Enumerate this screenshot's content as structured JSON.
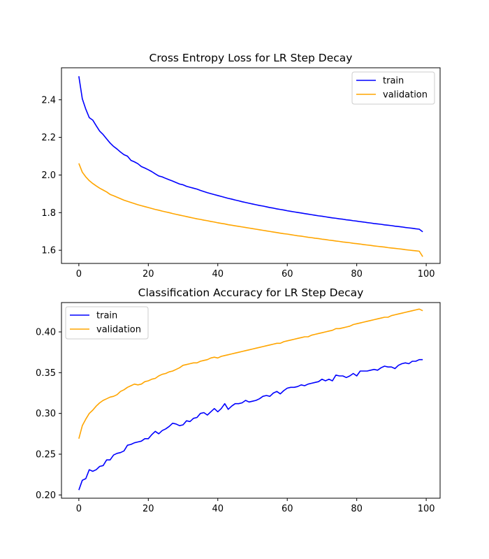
{
  "chart_data": [
    {
      "type": "line",
      "title": "Cross Entropy Loss for LR Step Decay",
      "xlabel": "",
      "ylabel": "",
      "xlim": [
        -5,
        104
      ],
      "ylim": [
        1.53,
        2.57
      ],
      "xticks": [
        0,
        20,
        40,
        60,
        80,
        100
      ],
      "xtick_labels": [
        "0",
        "20",
        "40",
        "60",
        "80",
        "100"
      ],
      "yticks": [
        1.6,
        1.8,
        2.0,
        2.2,
        2.4
      ],
      "ytick_labels": [
        "1.6",
        "1.8",
        "2.0",
        "2.2",
        "2.4"
      ],
      "grid": false,
      "legend_position": "top-right",
      "series": [
        {
          "name": "train",
          "color": "#0000ff",
          "x_start": 0,
          "values": [
            2.525,
            2.405,
            2.35,
            2.305,
            2.292,
            2.262,
            2.233,
            2.215,
            2.192,
            2.17,
            2.152,
            2.138,
            2.122,
            2.108,
            2.1,
            2.078,
            2.07,
            2.06,
            2.045,
            2.037,
            2.028,
            2.018,
            2.006,
            1.995,
            1.99,
            1.982,
            1.975,
            1.968,
            1.96,
            1.952,
            1.948,
            1.94,
            1.935,
            1.93,
            1.925,
            1.918,
            1.912,
            1.906,
            1.901,
            1.896,
            1.891,
            1.886,
            1.881,
            1.876,
            1.872,
            1.867,
            1.863,
            1.858,
            1.854,
            1.85,
            1.846,
            1.842,
            1.838,
            1.835,
            1.831,
            1.827,
            1.824,
            1.82,
            1.817,
            1.814,
            1.81,
            1.807,
            1.804,
            1.801,
            1.798,
            1.795,
            1.792,
            1.789,
            1.786,
            1.783,
            1.781,
            1.778,
            1.775,
            1.772,
            1.77,
            1.767,
            1.765,
            1.762,
            1.76,
            1.757,
            1.755,
            1.752,
            1.75,
            1.747,
            1.745,
            1.742,
            1.74,
            1.738,
            1.735,
            1.733,
            1.731,
            1.728,
            1.726,
            1.724,
            1.721,
            1.719,
            1.717,
            1.714,
            1.712,
            1.698
          ]
        },
        {
          "name": "validation",
          "color": "#ffa500",
          "x_start": 0,
          "values": [
            2.062,
            2.015,
            1.99,
            1.97,
            1.955,
            1.942,
            1.93,
            1.92,
            1.91,
            1.897,
            1.89,
            1.882,
            1.874,
            1.866,
            1.86,
            1.854,
            1.848,
            1.842,
            1.837,
            1.832,
            1.827,
            1.822,
            1.817,
            1.813,
            1.808,
            1.804,
            1.8,
            1.795,
            1.791,
            1.787,
            1.783,
            1.779,
            1.775,
            1.771,
            1.767,
            1.764,
            1.76,
            1.757,
            1.753,
            1.75,
            1.746,
            1.743,
            1.74,
            1.736,
            1.733,
            1.73,
            1.727,
            1.724,
            1.721,
            1.718,
            1.715,
            1.712,
            1.709,
            1.706,
            1.703,
            1.7,
            1.697,
            1.694,
            1.691,
            1.688,
            1.686,
            1.683,
            1.68,
            1.677,
            1.675,
            1.672,
            1.669,
            1.667,
            1.664,
            1.662,
            1.659,
            1.657,
            1.654,
            1.652,
            1.649,
            1.647,
            1.644,
            1.642,
            1.64,
            1.637,
            1.635,
            1.633,
            1.63,
            1.628,
            1.626,
            1.623,
            1.621,
            1.619,
            1.617,
            1.614,
            1.612,
            1.61,
            1.608,
            1.606,
            1.603,
            1.601,
            1.599,
            1.597,
            1.595,
            1.566
          ]
        }
      ]
    },
    {
      "type": "line",
      "title": "Classification Accuracy for LR Step Decay",
      "xlabel": "",
      "ylabel": "",
      "xlim": [
        -5,
        104
      ],
      "ylim": [
        0.196,
        0.436
      ],
      "xticks": [
        0,
        20,
        40,
        60,
        80,
        100
      ],
      "xtick_labels": [
        "0",
        "20",
        "40",
        "60",
        "80",
        "100"
      ],
      "yticks": [
        0.2,
        0.25,
        0.3,
        0.35,
        0.4
      ],
      "ytick_labels": [
        "0.20",
        "0.25",
        "0.30",
        "0.35",
        "0.40"
      ],
      "grid": false,
      "legend_position": "top-left",
      "series": [
        {
          "name": "train",
          "color": "#0000ff",
          "x_start": 0,
          "values": [
            0.206,
            0.218,
            0.22,
            0.231,
            0.229,
            0.231,
            0.235,
            0.236,
            0.243,
            0.243,
            0.249,
            0.251,
            0.252,
            0.254,
            0.261,
            0.262,
            0.264,
            0.265,
            0.266,
            0.269,
            0.269,
            0.274,
            0.278,
            0.275,
            0.279,
            0.281,
            0.284,
            0.288,
            0.287,
            0.285,
            0.286,
            0.291,
            0.29,
            0.294,
            0.295,
            0.3,
            0.301,
            0.298,
            0.302,
            0.306,
            0.302,
            0.306,
            0.312,
            0.305,
            0.309,
            0.312,
            0.312,
            0.313,
            0.316,
            0.314,
            0.315,
            0.316,
            0.318,
            0.321,
            0.322,
            0.321,
            0.325,
            0.327,
            0.324,
            0.328,
            0.331,
            0.332,
            0.332,
            0.333,
            0.335,
            0.334,
            0.336,
            0.337,
            0.338,
            0.339,
            0.342,
            0.34,
            0.342,
            0.34,
            0.347,
            0.346,
            0.346,
            0.344,
            0.346,
            0.349,
            0.346,
            0.352,
            0.352,
            0.352,
            0.353,
            0.354,
            0.353,
            0.356,
            0.358,
            0.357,
            0.357,
            0.355,
            0.359,
            0.361,
            0.362,
            0.361,
            0.364,
            0.364,
            0.366,
            0.366
          ]
        },
        {
          "name": "validation",
          "color": "#ffa500",
          "x_start": 0,
          "values": [
            0.269,
            0.285,
            0.293,
            0.3,
            0.304,
            0.309,
            0.313,
            0.316,
            0.318,
            0.32,
            0.321,
            0.323,
            0.327,
            0.329,
            0.332,
            0.334,
            0.336,
            0.335,
            0.336,
            0.339,
            0.34,
            0.342,
            0.343,
            0.346,
            0.348,
            0.349,
            0.351,
            0.352,
            0.354,
            0.356,
            0.359,
            0.36,
            0.361,
            0.362,
            0.362,
            0.364,
            0.365,
            0.366,
            0.368,
            0.369,
            0.368,
            0.37,
            0.371,
            0.372,
            0.373,
            0.374,
            0.375,
            0.376,
            0.377,
            0.378,
            0.379,
            0.38,
            0.381,
            0.382,
            0.383,
            0.384,
            0.385,
            0.386,
            0.386,
            0.388,
            0.389,
            0.39,
            0.391,
            0.392,
            0.393,
            0.394,
            0.394,
            0.396,
            0.397,
            0.398,
            0.399,
            0.4,
            0.401,
            0.402,
            0.404,
            0.404,
            0.405,
            0.406,
            0.407,
            0.409,
            0.41,
            0.411,
            0.412,
            0.413,
            0.414,
            0.415,
            0.416,
            0.417,
            0.418,
            0.418,
            0.42,
            0.421,
            0.422,
            0.423,
            0.424,
            0.425,
            0.426,
            0.427,
            0.428,
            0.426
          ]
        }
      ]
    }
  ]
}
